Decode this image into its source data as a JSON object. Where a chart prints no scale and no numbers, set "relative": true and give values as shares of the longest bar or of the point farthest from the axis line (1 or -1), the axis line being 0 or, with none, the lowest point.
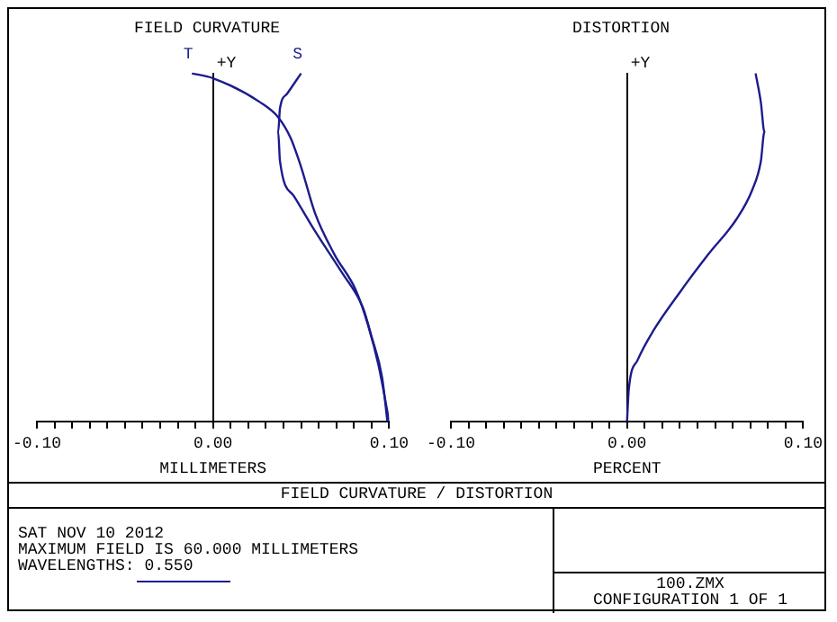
{
  "chart_data": [
    {
      "type": "line",
      "title": "FIELD CURVATURE",
      "xlabel": "MILLIMETERS",
      "ylabel": "+Y",
      "xlim": [
        -0.1,
        0.1
      ],
      "xticks": [
        {
          "value": -0.1,
          "label": "-0.10"
        },
        {
          "value": -0.09,
          "label": null
        },
        {
          "value": -0.08,
          "label": null
        },
        {
          "value": -0.07,
          "label": null
        },
        {
          "value": -0.06,
          "label": null
        },
        {
          "value": -0.05,
          "label": null
        },
        {
          "value": -0.04,
          "label": null
        },
        {
          "value": -0.03,
          "label": null
        },
        {
          "value": -0.02,
          "label": null
        },
        {
          "value": -0.01,
          "label": null
        },
        {
          "value": 0,
          "label": "0.00"
        },
        {
          "value": 0.01,
          "label": null
        },
        {
          "value": 0.02,
          "label": null
        },
        {
          "value": 0.03,
          "label": null
        },
        {
          "value": 0.04,
          "label": null
        },
        {
          "value": 0.05,
          "label": null
        },
        {
          "value": 0.06,
          "label": null
        },
        {
          "value": 0.07,
          "label": null
        },
        {
          "value": 0.08,
          "label": null
        },
        {
          "value": 0.09,
          "label": null
        },
        {
          "value": 0.1,
          "label": "0.10"
        }
      ],
      "relative": true,
      "tick_labels": "x",
      "marker": "none",
      "series": [
        {
          "name": "T",
          "color": "#1c1c8c",
          "x": [
            0.1,
            0.094,
            0.088,
            0.081,
            0.069,
            0.058,
            0.05,
            0.044,
            0.037,
            0.027,
            0,
            -0.012
          ],
          "values": [
            0,
            0.16,
            0.277,
            0.378,
            0.479,
            0.597,
            0.731,
            0.815,
            0.874,
            0.916,
            0.986,
            1
          ]
        },
        {
          "name": "S",
          "color": "#1c1c8c",
          "x": [
            0.099,
            0.096,
            0.09,
            0.085,
            0.073,
            0.058,
            0.046,
            0.038,
            0.037,
            0.038,
            0.042,
            0.05
          ],
          "values": [
            0,
            0.126,
            0.244,
            0.328,
            0.429,
            0.546,
            0.647,
            0.748,
            0.832,
            0.899,
            0.941,
            1
          ]
        }
      ]
    },
    {
      "type": "line",
      "title": "DISTORTION",
      "xlabel": "PERCENT",
      "ylabel": "+Y",
      "xlim": [
        -0.1,
        0.1
      ],
      "xticks": [
        {
          "value": -0.1,
          "label": "-0.10"
        },
        {
          "value": -0.09,
          "label": null
        },
        {
          "value": -0.08,
          "label": null
        },
        {
          "value": -0.07,
          "label": null
        },
        {
          "value": -0.06,
          "label": null
        },
        {
          "value": -0.05,
          "label": null
        },
        {
          "value": -0.04,
          "label": null
        },
        {
          "value": -0.03,
          "label": null
        },
        {
          "value": -0.02,
          "label": null
        },
        {
          "value": -0.01,
          "label": null
        },
        {
          "value": 0,
          "label": "0.00"
        },
        {
          "value": 0.01,
          "label": null
        },
        {
          "value": 0.02,
          "label": null
        },
        {
          "value": 0.03,
          "label": null
        },
        {
          "value": 0.04,
          "label": null
        },
        {
          "value": 0.05,
          "label": null
        },
        {
          "value": 0.06,
          "label": null
        },
        {
          "value": 0.07,
          "label": null
        },
        {
          "value": 0.08,
          "label": null
        },
        {
          "value": 0.09,
          "label": null
        },
        {
          "value": 0.1,
          "label": "0.10"
        }
      ],
      "relative": true,
      "tick_labels": "x",
      "marker": "none",
      "series": [
        {
          "color": "#1c1c8c",
          "x": [
            0,
            0.001,
            0.006,
            0.015,
            0.031,
            0.046,
            0.062,
            0.071,
            0.076,
            0.078,
            0.076,
            0.073
          ],
          "values": [
            0,
            0.092,
            0.176,
            0.261,
            0.378,
            0.479,
            0.58,
            0.664,
            0.748,
            0.832,
            0.916,
            1
          ]
        }
      ]
    },
    {
      "type": "other",
      "title": "FIELD CURVATURE / DISTORTION",
      "annotations": [
        "SAT NOV 10 2012",
        "MAXIMUM FIELD IS 60.000 MILLIMETERS",
        "WAVELENGTHS: 0.550",
        "100.ZMX",
        "CONFIGURATION 1 OF 1"
      ]
    }
  ]
}
